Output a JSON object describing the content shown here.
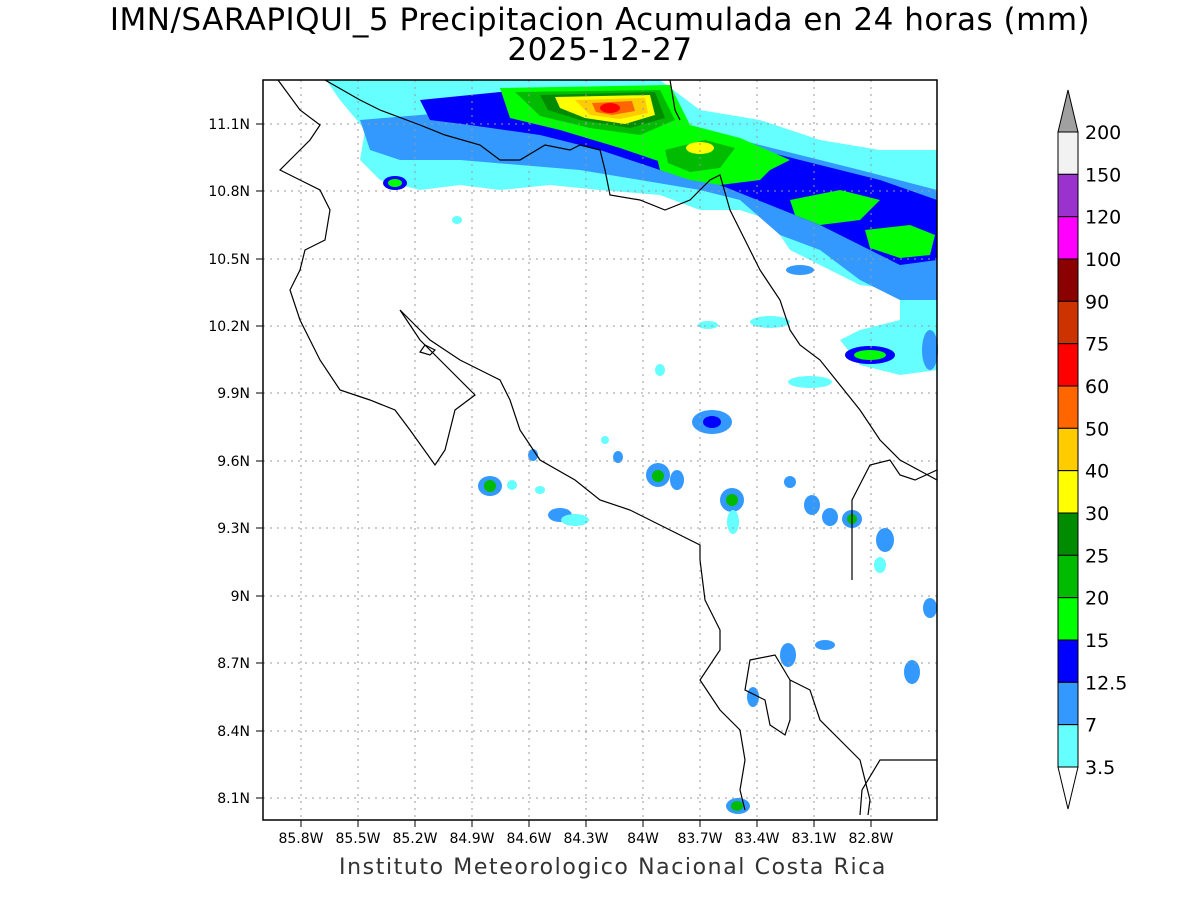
{
  "title": {
    "line1": "IMN/SARAPIQUI_5 Precipitacion Acumulada en 24 horas (mm)",
    "line2": "2025-12-27"
  },
  "footer": "Instituto Meteorologico Nacional Costa Rica",
  "map": {
    "lon_range": [
      -86.1,
      -82.3
    ],
    "lat_range": [
      7.98,
      11.33
    ],
    "lat_ticks": [
      "11.1N",
      "10.8N",
      "10.5N",
      "10.2N",
      "9.9N",
      "9.6N",
      "9.3N",
      "9N",
      "8.7N",
      "8.4N",
      "8.1N"
    ],
    "lon_ticks": [
      "85.8W",
      "85.5W",
      "85.2W",
      "84.9W",
      "84.6W",
      "84.3W",
      "84W",
      "83.7W",
      "83.4W",
      "83.1W",
      "82.8W"
    ],
    "grid": true
  },
  "colorbar": {
    "levels": [
      "200",
      "150",
      "120",
      "100",
      "90",
      "75",
      "60",
      "50",
      "40",
      "30",
      "25",
      "20",
      "15",
      "12.5",
      "7",
      "3.5"
    ],
    "colors": [
      "#a0a0a0",
      "#f2f2f2",
      "#9a32cd",
      "#ff00ff",
      "#8b0000",
      "#cd3300",
      "#ff0000",
      "#ff6600",
      "#ffcc00",
      "#ffff00",
      "#008b00",
      "#00bb00",
      "#00ff00",
      "#0000ff",
      "#3399ff",
      "#66ffff"
    ]
  }
}
